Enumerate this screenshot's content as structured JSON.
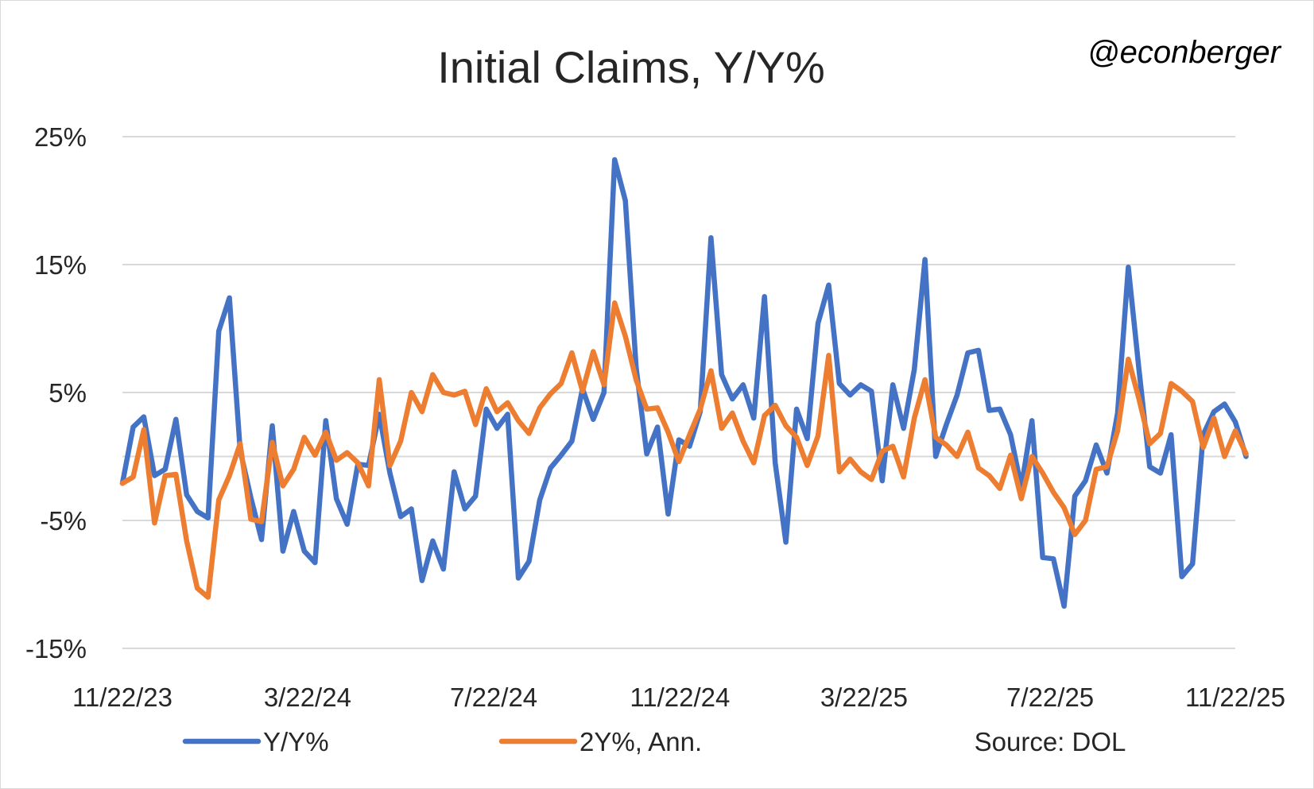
{
  "chart_data": {
    "type": "line",
    "title": "Initial Claims, Y/Y%",
    "annotation": "@econberger",
    "source": "Source: DOL",
    "xlabel": "",
    "ylabel": "",
    "ylim": [
      -15,
      25
    ],
    "yticks": [
      "25%",
      "15%",
      "5%",
      "-5%",
      "-15%"
    ],
    "ytick_values": [
      25,
      15,
      5,
      -5,
      -15
    ],
    "xlim": [
      0,
      104
    ],
    "xticks": [
      "11/22/23",
      "3/22/24",
      "7/22/24",
      "11/22/24",
      "3/22/25",
      "7/22/25",
      "11/22/25"
    ],
    "xtick_weeks": [
      0,
      17.3,
      34.7,
      52.1,
      69.3,
      86.7,
      104
    ],
    "grid": true,
    "legend_position": "bottom",
    "series": [
      {
        "name": "Y/Y%",
        "color": "#4472C4",
        "values": [
          -2.1,
          2.3,
          3.1,
          -1.5,
          -1.0,
          2.9,
          -3.0,
          -4.3,
          -4.8,
          9.8,
          12.4,
          0.5,
          -3.2,
          -6.5,
          2.4,
          -7.4,
          -4.3,
          -7.4,
          -8.3,
          2.8,
          -3.3,
          -5.3,
          -0.6,
          -0.7,
          3.3,
          -1.3,
          -4.7,
          -4.1,
          -9.7,
          -6.6,
          -8.8,
          -1.2,
          -4.1,
          -3.1,
          3.7,
          2.2,
          3.3,
          -9.5,
          -8.2,
          -3.4,
          -0.9,
          0.1,
          1.2,
          5.3,
          2.9,
          5.0,
          23.2,
          20.0,
          7.0,
          0.2,
          2.3,
          -4.5,
          1.3,
          0.8,
          3.5,
          17.1,
          6.4,
          4.5,
          5.6,
          3.0,
          12.5,
          -0.5,
          -6.7,
          3.7,
          1.4,
          10.4,
          13.4,
          5.7,
          4.8,
          5.6,
          5.1,
          -1.9,
          5.6,
          2.2,
          6.8,
          15.4,
          0.0,
          2.5,
          4.8,
          8.1,
          8.3,
          3.6,
          3.7,
          1.7,
          -2.4,
          2.8,
          -7.9,
          -8.0,
          -11.7,
          -3.1,
          -1.9,
          0.9,
          -1.3,
          3.4,
          14.8,
          6.8,
          -0.8,
          -1.3,
          1.7,
          -9.4,
          -8.4,
          1.7,
          3.5,
          4.1,
          2.7,
          0.0
        ]
      },
      {
        "name": "2Y%, Ann.",
        "color": "#ED7D31",
        "values": [
          -2.1,
          -1.6,
          2.1,
          -5.2,
          -1.5,
          -1.4,
          -6.6,
          -10.3,
          -11.0,
          -3.4,
          -1.5,
          1.0,
          -4.9,
          -5.1,
          1.1,
          -2.3,
          -1.0,
          1.5,
          0.1,
          1.9,
          -0.3,
          0.3,
          -0.5,
          -2.3,
          6.0,
          -0.7,
          1.2,
          5.0,
          3.5,
          6.4,
          5.0,
          4.8,
          5.1,
          2.5,
          5.3,
          3.5,
          4.2,
          2.8,
          1.8,
          3.8,
          4.9,
          5.7,
          8.1,
          5.1,
          8.2,
          5.6,
          12.0,
          9.4,
          6.0,
          3.7,
          3.8,
          1.9,
          -0.4,
          1.7,
          3.7,
          6.7,
          2.2,
          3.4,
          1.2,
          -0.5,
          3.2,
          4.0,
          2.4,
          1.5,
          -0.7,
          1.6,
          7.9,
          -1.2,
          -0.2,
          -1.2,
          -1.8,
          0.4,
          0.8,
          -1.6,
          3.0,
          6.0,
          1.5,
          0.9,
          0.0,
          1.9,
          -0.9,
          -1.5,
          -2.5,
          0.1,
          -3.3,
          0.0,
          -1.3,
          -2.8,
          -4.0,
          -6.1,
          -5.0,
          -1.0,
          -0.8,
          2.0,
          7.6,
          4.5,
          1.0,
          1.8,
          5.7,
          5.1,
          4.3,
          0.7,
          3.0,
          0.0,
          2.0,
          0.2
        ]
      }
    ]
  }
}
